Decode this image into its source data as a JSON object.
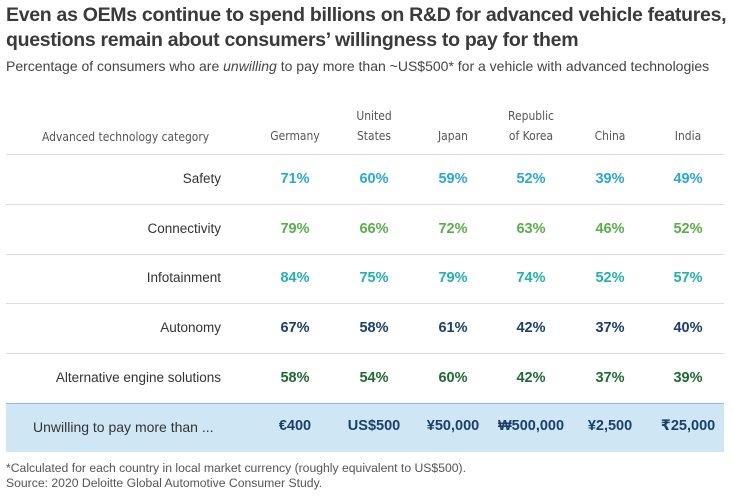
{
  "title": "Even as OEMs continue to spend billions on R&D for advanced vehicle features, questions remain about consumers’ willingness to pay for them",
  "subtitle_parts": {
    "before": "Percentage of consumers who are ",
    "emphasis": "unwilling",
    "after": " to pay more than ~US$500* for a vehicle with advanced technologies"
  },
  "header": {
    "category_label": "Advanced technology category",
    "countries": [
      "Germany",
      "United States",
      "Japan",
      "Republic of Korea",
      "China",
      "India"
    ]
  },
  "colors": {
    "Safety": "#2aa8d8",
    "Connectivity": "#5aae4a",
    "Infotainment": "#20b2b0",
    "Autonomy": "#1b3f6e",
    "Alternative engine solutions": "#1e6b35",
    "band_bg": "#cfe7f5",
    "band_text": "#1b3f6e"
  },
  "chart_data": {
    "type": "table",
    "title": "Even as OEMs continue to spend billions on R&D for advanced vehicle features, questions remain about consumers’ willingness to pay for them",
    "subtitle": "Percentage of consumers who are unwilling to pay more than ~US$500* for a vehicle with advanced technologies",
    "columns": [
      "Germany",
      "United States",
      "Japan",
      "Republic of Korea",
      "China",
      "India"
    ],
    "rows": [
      {
        "category": "Safety",
        "values": [
          "71%",
          "60%",
          "59%",
          "52%",
          "39%",
          "49%"
        ]
      },
      {
        "category": "Connectivity",
        "values": [
          "79%",
          "66%",
          "72%",
          "63%",
          "46%",
          "52%"
        ]
      },
      {
        "category": "Infotainment",
        "values": [
          "84%",
          "75%",
          "79%",
          "74%",
          "52%",
          "57%"
        ]
      },
      {
        "category": "Autonomy",
        "values": [
          "67%",
          "58%",
          "61%",
          "42%",
          "37%",
          "40%"
        ]
      },
      {
        "category": "Alternative engine solutions",
        "values": [
          "58%",
          "54%",
          "60%",
          "42%",
          "37%",
          "39%"
        ]
      }
    ],
    "threshold_row": {
      "label": "Unwilling to pay more than ...",
      "values": [
        "€400",
        "US$500",
        "¥50,000",
        "₩500,000",
        "¥2,500",
        "₹25,000"
      ]
    }
  },
  "footnote": "*Calculated for each country in local market currency (roughly equivalent to US$500).",
  "source": "Source: 2020 Deloitte Global Automotive Consumer Study."
}
